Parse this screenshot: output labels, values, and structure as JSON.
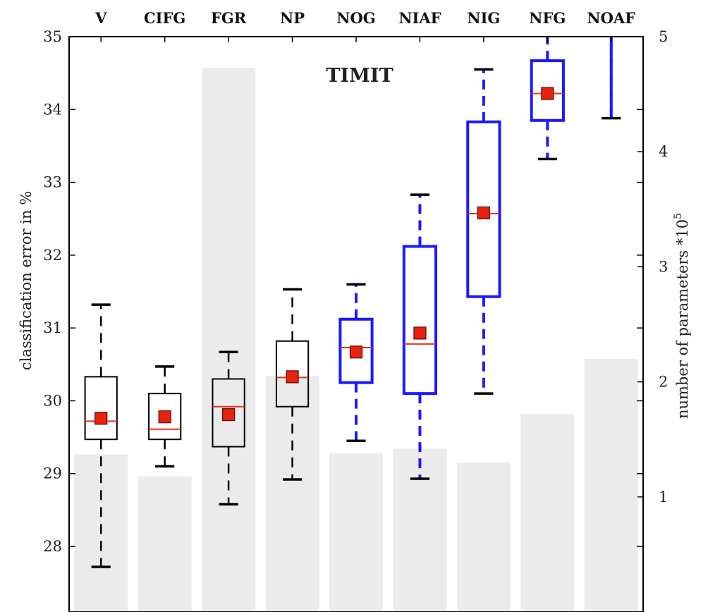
{
  "chart_data": {
    "type": "box",
    "title": "TIMIT",
    "ylabel": "classification error in %",
    "y2label": "number of parameters *10^5",
    "y2label_base": "number of parameters *10",
    "y2label_exp": "5",
    "ylim": [
      27.1,
      35
    ],
    "y2lim": [
      0,
      5
    ],
    "yticks": [
      28,
      29,
      30,
      31,
      32,
      33,
      34,
      35
    ],
    "y2ticks": [
      1,
      2,
      3,
      4,
      5
    ],
    "categories": [
      "V",
      "CIFG",
      "FGR",
      "NP",
      "NOG",
      "NIAF",
      "NIG",
      "NFG",
      "NOAF"
    ],
    "box_colors": [
      "#000000",
      "#000000",
      "#000000",
      "#000000",
      "#1a1aff",
      "#1a1aff",
      "#1a1aff",
      "#1a1aff",
      "#1a1aff"
    ],
    "median_color": "#e8331f",
    "mean_color": "#e8220f",
    "bar_color": "#ebebeb",
    "boxes": [
      {
        "whisker_low": 27.72,
        "q1": 29.47,
        "median": 29.72,
        "q3": 30.33,
        "whisker_high": 31.32,
        "mean": 29.76
      },
      {
        "whisker_low": 29.1,
        "q1": 29.47,
        "median": 29.61,
        "q3": 30.1,
        "whisker_high": 30.47,
        "mean": 29.78
      },
      {
        "whisker_low": 28.58,
        "q1": 29.37,
        "median": 29.92,
        "q3": 30.3,
        "whisker_high": 30.67,
        "mean": 29.81
      },
      {
        "whisker_low": 28.92,
        "q1": 29.92,
        "median": 30.32,
        "q3": 30.82,
        "whisker_high": 31.53,
        "mean": 30.33
      },
      {
        "whisker_low": 29.45,
        "q1": 30.25,
        "median": 30.73,
        "q3": 31.12,
        "whisker_high": 31.6,
        "mean": 30.67
      },
      {
        "whisker_low": 28.93,
        "q1": 30.1,
        "median": 30.78,
        "q3": 32.12,
        "whisker_high": 32.83,
        "mean": 30.93
      },
      {
        "whisker_low": 30.1,
        "q1": 31.43,
        "median": 32.57,
        "q3": 33.83,
        "whisker_high": 34.55,
        "mean": 32.58
      },
      {
        "whisker_low": 33.32,
        "q1": 33.85,
        "median": 34.22,
        "q3": 34.67,
        "whisker_high": 35.0,
        "mean": 34.22
      },
      {
        "whisker_low": 33.88,
        "q1": null,
        "median": null,
        "q3": null,
        "whisker_high": 35.0,
        "mean": null
      }
    ],
    "parameters_e5": [
      1.37,
      1.18,
      4.73,
      2.05,
      1.38,
      1.42,
      1.3,
      1.72,
      2.2
    ]
  }
}
